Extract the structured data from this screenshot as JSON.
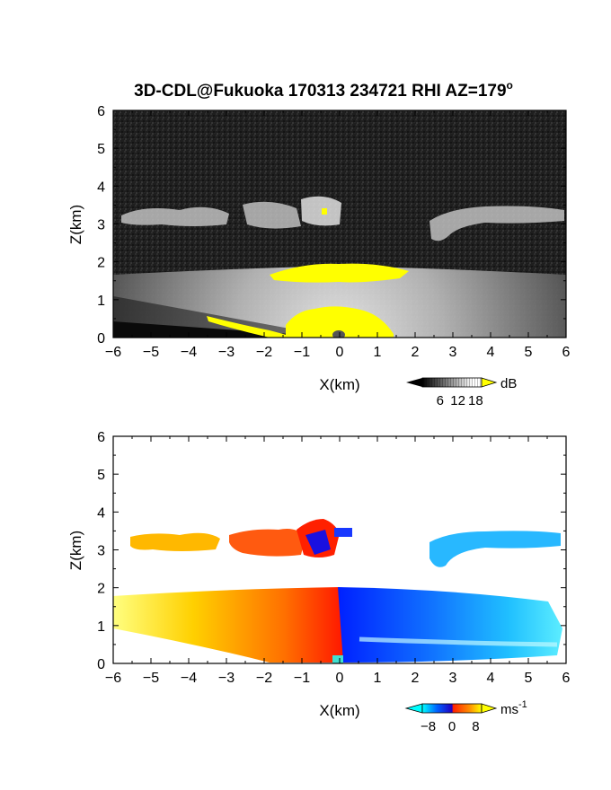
{
  "title": "3D-CDL@Fukuoka 170313 234721 RHI AZ=179",
  "title_degree": "o",
  "chart_data": [
    {
      "type": "heatmap",
      "quantity": "reflectivity",
      "xlabel": "X(km)",
      "ylabel": "Z(km)",
      "xlim": [
        -6,
        6
      ],
      "ylim": [
        0,
        6
      ],
      "x_ticks": [
        "-6",
        "-5",
        "-4",
        "-3",
        "-2",
        "-1",
        "0",
        "1",
        "2",
        "3",
        "4",
        "5",
        "6"
      ],
      "y_ticks": [
        "0",
        "1",
        "2",
        "3",
        "4",
        "5",
        "6"
      ],
      "colorbar": {
        "unit": "dB",
        "tick_labels": [
          "6",
          "12",
          "18"
        ],
        "tick_values": [
          6,
          12,
          18
        ],
        "range": [
          0,
          20
        ],
        "colors": [
          "#000000",
          "#ffffff",
          "#ffff00"
        ]
      },
      "background": "#1a1a1a",
      "saturation_color": "#ffff00"
    },
    {
      "type": "heatmap",
      "quantity": "doppler velocity",
      "xlabel": "X(km)",
      "ylabel": "Z(km)",
      "xlim": [
        -6,
        6
      ],
      "ylim": [
        0,
        6
      ],
      "x_ticks": [
        "-6",
        "-5",
        "-4",
        "-3",
        "-2",
        "-1",
        "0",
        "1",
        "2",
        "3",
        "4",
        "5",
        "6"
      ],
      "y_ticks": [
        "0",
        "1",
        "2",
        "3",
        "4",
        "5",
        "6"
      ],
      "colorbar": {
        "unit": "ms",
        "unit_exponent": "-1",
        "tick_labels": [
          "-8",
          "0",
          "8"
        ],
        "tick_values": [
          -8,
          0,
          8
        ],
        "range": [
          -10,
          10
        ],
        "colors": [
          "#00ffff",
          "#0000ff",
          "#ff0000",
          "#ffff00"
        ]
      },
      "background": "#ffffff"
    }
  ]
}
